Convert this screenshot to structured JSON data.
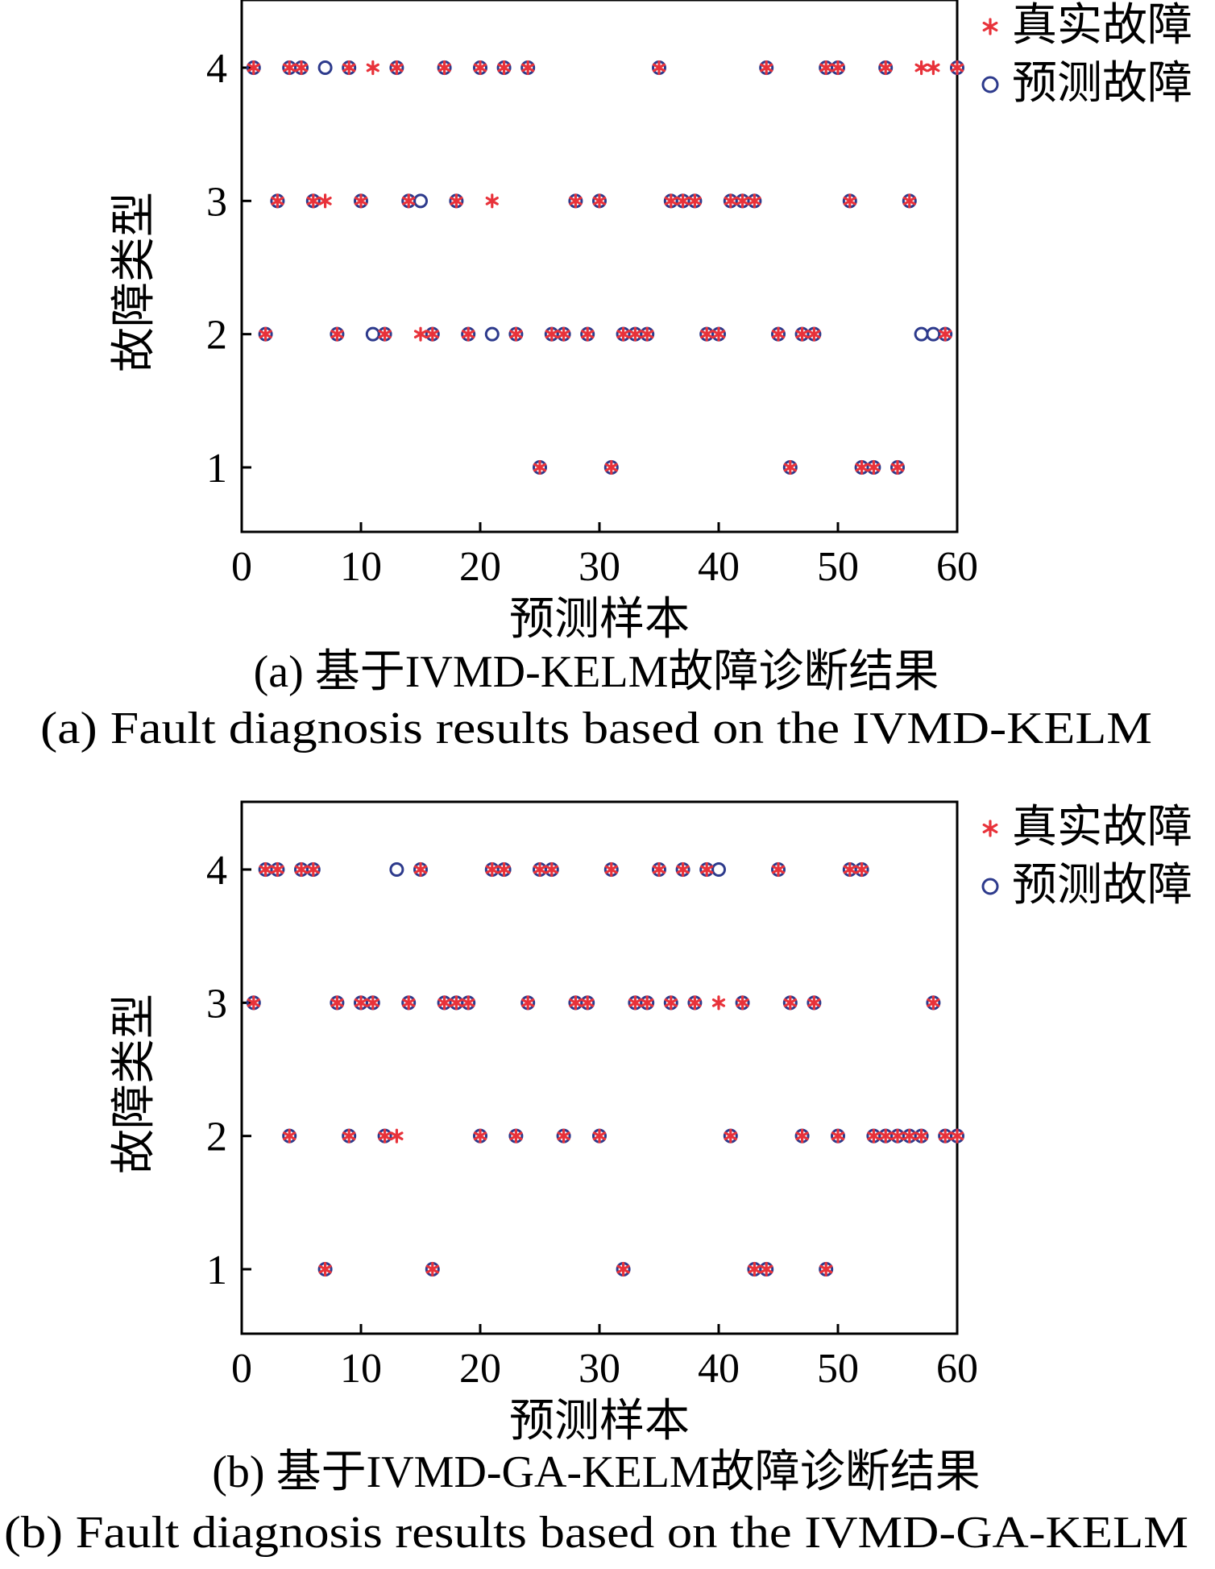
{
  "colors": {
    "true_fault": "#e8323a",
    "predicted_fault": "#2d3a8c",
    "axis": "#000000"
  },
  "chart_data": [
    {
      "type": "scatter",
      "caption_cn": "(a)  基于IVMD-KELM故障诊断结果",
      "caption_en": "(a)  Fault diagnosis results based on the IVMD-KELM",
      "xlabel": "预测样本",
      "ylabel": "故障类型",
      "xlim": [
        0,
        60
      ],
      "ylim": [
        0.5,
        4.5
      ],
      "xticks": [
        0,
        10,
        20,
        30,
        40,
        50,
        60
      ],
      "yticks": [
        1,
        2,
        3,
        4
      ],
      "legend_position": "outside-top-right",
      "series": [
        {
          "name": "真实故障",
          "marker": "asterisk",
          "points": [
            [
              1,
              4
            ],
            [
              2,
              2
            ],
            [
              3,
              3
            ],
            [
              4,
              4
            ],
            [
              5,
              4
            ],
            [
              6,
              3
            ],
            [
              7,
              3
            ],
            [
              8,
              2
            ],
            [
              9,
              4
            ],
            [
              10,
              3
            ],
            [
              11,
              4
            ],
            [
              12,
              2
            ],
            [
              13,
              4
            ],
            [
              14,
              3
            ],
            [
              15,
              2
            ],
            [
              16,
              2
            ],
            [
              17,
              4
            ],
            [
              18,
              3
            ],
            [
              19,
              2
            ],
            [
              20,
              4
            ],
            [
              21,
              3
            ],
            [
              22,
              4
            ],
            [
              23,
              2
            ],
            [
              24,
              4
            ],
            [
              25,
              1
            ],
            [
              26,
              2
            ],
            [
              27,
              2
            ],
            [
              28,
              3
            ],
            [
              29,
              2
            ],
            [
              30,
              3
            ],
            [
              31,
              1
            ],
            [
              32,
              2
            ],
            [
              33,
              2
            ],
            [
              34,
              2
            ],
            [
              35,
              4
            ],
            [
              36,
              3
            ],
            [
              37,
              3
            ],
            [
              38,
              3
            ],
            [
              39,
              2
            ],
            [
              40,
              2
            ],
            [
              41,
              3
            ],
            [
              42,
              3
            ],
            [
              43,
              3
            ],
            [
              44,
              4
            ],
            [
              45,
              2
            ],
            [
              46,
              1
            ],
            [
              47,
              2
            ],
            [
              48,
              2
            ],
            [
              49,
              4
            ],
            [
              50,
              4
            ],
            [
              51,
              3
            ],
            [
              52,
              1
            ],
            [
              53,
              1
            ],
            [
              54,
              4
            ],
            [
              55,
              1
            ],
            [
              56,
              3
            ],
            [
              57,
              4
            ],
            [
              58,
              4
            ],
            [
              59,
              2
            ],
            [
              60,
              4
            ]
          ]
        },
        {
          "name": "预测故障",
          "marker": "circle",
          "points": [
            [
              1,
              4
            ],
            [
              2,
              2
            ],
            [
              3,
              3
            ],
            [
              4,
              4
            ],
            [
              5,
              4
            ],
            [
              6,
              3
            ],
            [
              7,
              4
            ],
            [
              8,
              2
            ],
            [
              9,
              4
            ],
            [
              10,
              3
            ],
            [
              11,
              2
            ],
            [
              12,
              2
            ],
            [
              13,
              4
            ],
            [
              14,
              3
            ],
            [
              15,
              3
            ],
            [
              16,
              2
            ],
            [
              17,
              4
            ],
            [
              18,
              3
            ],
            [
              19,
              2
            ],
            [
              20,
              4
            ],
            [
              21,
              2
            ],
            [
              22,
              4
            ],
            [
              23,
              2
            ],
            [
              24,
              4
            ],
            [
              25,
              1
            ],
            [
              26,
              2
            ],
            [
              27,
              2
            ],
            [
              28,
              3
            ],
            [
              29,
              2
            ],
            [
              30,
              3
            ],
            [
              31,
              1
            ],
            [
              32,
              2
            ],
            [
              33,
              2
            ],
            [
              34,
              2
            ],
            [
              35,
              4
            ],
            [
              36,
              3
            ],
            [
              37,
              3
            ],
            [
              38,
              3
            ],
            [
              39,
              2
            ],
            [
              40,
              2
            ],
            [
              41,
              3
            ],
            [
              42,
              3
            ],
            [
              43,
              3
            ],
            [
              44,
              4
            ],
            [
              45,
              2
            ],
            [
              46,
              1
            ],
            [
              47,
              2
            ],
            [
              48,
              2
            ],
            [
              49,
              4
            ],
            [
              50,
              4
            ],
            [
              51,
              3
            ],
            [
              52,
              1
            ],
            [
              53,
              1
            ],
            [
              54,
              4
            ],
            [
              55,
              1
            ],
            [
              56,
              3
            ],
            [
              57,
              2
            ],
            [
              58,
              2
            ],
            [
              59,
              2
            ],
            [
              60,
              4
            ]
          ]
        }
      ]
    },
    {
      "type": "scatter",
      "caption_cn": "(b)  基于IVMD-GA-KELM故障诊断结果",
      "caption_en": "(b)  Fault diagnosis results based on the IVMD-GA-KELM",
      "xlabel": "预测样本",
      "ylabel": "故障类型",
      "xlim": [
        0,
        60
      ],
      "ylim": [
        0.5,
        4.5
      ],
      "xticks": [
        0,
        10,
        20,
        30,
        40,
        50,
        60
      ],
      "yticks": [
        1,
        2,
        3,
        4
      ],
      "legend_position": "outside-top-right",
      "series": [
        {
          "name": "真实故障",
          "marker": "asterisk",
          "points": [
            [
              1,
              3
            ],
            [
              2,
              4
            ],
            [
              3,
              4
            ],
            [
              4,
              2
            ],
            [
              5,
              4
            ],
            [
              6,
              4
            ],
            [
              7,
              1
            ],
            [
              8,
              3
            ],
            [
              9,
              2
            ],
            [
              10,
              3
            ],
            [
              11,
              3
            ],
            [
              12,
              2
            ],
            [
              13,
              2
            ],
            [
              14,
              3
            ],
            [
              15,
              4
            ],
            [
              16,
              1
            ],
            [
              17,
              3
            ],
            [
              18,
              3
            ],
            [
              19,
              3
            ],
            [
              20,
              2
            ],
            [
              21,
              4
            ],
            [
              22,
              4
            ],
            [
              23,
              2
            ],
            [
              24,
              3
            ],
            [
              25,
              4
            ],
            [
              26,
              4
            ],
            [
              27,
              2
            ],
            [
              28,
              3
            ],
            [
              29,
              3
            ],
            [
              30,
              2
            ],
            [
              31,
              4
            ],
            [
              32,
              1
            ],
            [
              33,
              3
            ],
            [
              34,
              3
            ],
            [
              35,
              4
            ],
            [
              36,
              3
            ],
            [
              37,
              4
            ],
            [
              38,
              3
            ],
            [
              39,
              4
            ],
            [
              40,
              3
            ],
            [
              41,
              2
            ],
            [
              42,
              3
            ],
            [
              43,
              1
            ],
            [
              44,
              1
            ],
            [
              45,
              4
            ],
            [
              46,
              3
            ],
            [
              47,
              2
            ],
            [
              48,
              3
            ],
            [
              49,
              1
            ],
            [
              50,
              2
            ],
            [
              51,
              4
            ],
            [
              52,
              4
            ],
            [
              53,
              2
            ],
            [
              54,
              2
            ],
            [
              55,
              2
            ],
            [
              56,
              2
            ],
            [
              57,
              2
            ],
            [
              58,
              3
            ],
            [
              59,
              2
            ],
            [
              60,
              2
            ]
          ]
        },
        {
          "name": "预测故障",
          "marker": "circle",
          "points": [
            [
              1,
              3
            ],
            [
              2,
              4
            ],
            [
              3,
              4
            ],
            [
              4,
              2
            ],
            [
              5,
              4
            ],
            [
              6,
              4
            ],
            [
              7,
              1
            ],
            [
              8,
              3
            ],
            [
              9,
              2
            ],
            [
              10,
              3
            ],
            [
              11,
              3
            ],
            [
              12,
              2
            ],
            [
              13,
              4
            ],
            [
              14,
              3
            ],
            [
              15,
              4
            ],
            [
              16,
              1
            ],
            [
              17,
              3
            ],
            [
              18,
              3
            ],
            [
              19,
              3
            ],
            [
              20,
              2
            ],
            [
              21,
              4
            ],
            [
              22,
              4
            ],
            [
              23,
              2
            ],
            [
              24,
              3
            ],
            [
              25,
              4
            ],
            [
              26,
              4
            ],
            [
              27,
              2
            ],
            [
              28,
              3
            ],
            [
              29,
              3
            ],
            [
              30,
              2
            ],
            [
              31,
              4
            ],
            [
              32,
              1
            ],
            [
              33,
              3
            ],
            [
              34,
              3
            ],
            [
              35,
              4
            ],
            [
              36,
              3
            ],
            [
              37,
              4
            ],
            [
              38,
              3
            ],
            [
              39,
              4
            ],
            [
              40,
              4
            ],
            [
              41,
              2
            ],
            [
              42,
              3
            ],
            [
              43,
              1
            ],
            [
              44,
              1
            ],
            [
              45,
              4
            ],
            [
              46,
              3
            ],
            [
              47,
              2
            ],
            [
              48,
              3
            ],
            [
              49,
              1
            ],
            [
              50,
              2
            ],
            [
              51,
              4
            ],
            [
              52,
              4
            ],
            [
              53,
              2
            ],
            [
              54,
              2
            ],
            [
              55,
              2
            ],
            [
              56,
              2
            ],
            [
              57,
              2
            ],
            [
              58,
              3
            ],
            [
              59,
              2
            ],
            [
              60,
              2
            ]
          ]
        }
      ]
    }
  ]
}
